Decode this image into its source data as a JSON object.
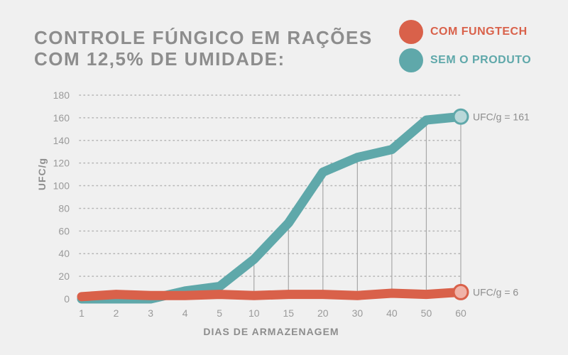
{
  "chart_data": {
    "type": "line",
    "title": "CONTROLE FÚNGICO EM RAÇÕES COM 12,5% DE UMIDADE:",
    "title_lines": [
      "CONTROLE FÚNGICO EM RAÇÕES",
      "COM 12,5% DE UMIDADE:"
    ],
    "xlabel": "DIAS DE ARMAZENAGEM",
    "ylabel": "UFC/g",
    "categories": [
      "1",
      "2",
      "3",
      "4",
      "5",
      "10",
      "15",
      "20",
      "30",
      "40",
      "50",
      "60"
    ],
    "ylim": [
      0,
      180
    ],
    "yticks": [
      "0",
      "20",
      "40",
      "60",
      "80",
      "100",
      "120",
      "140",
      "160",
      "180"
    ],
    "grid": true,
    "legend_position": "top-right",
    "series": [
      {
        "name": "COM FUNGTECH",
        "color": "#d9614a",
        "values": [
          2,
          4,
          3,
          3,
          4,
          3,
          4,
          4,
          3,
          5,
          4,
          6
        ],
        "end_label": "UFC/g = 6"
      },
      {
        "name": "SEM O PRODUTO",
        "color": "#5fa8aa",
        "values": [
          0,
          0,
          0,
          7,
          11,
          35,
          67,
          112,
          125,
          132,
          158,
          161
        ],
        "end_label": "UFC/g = 161"
      }
    ]
  }
}
